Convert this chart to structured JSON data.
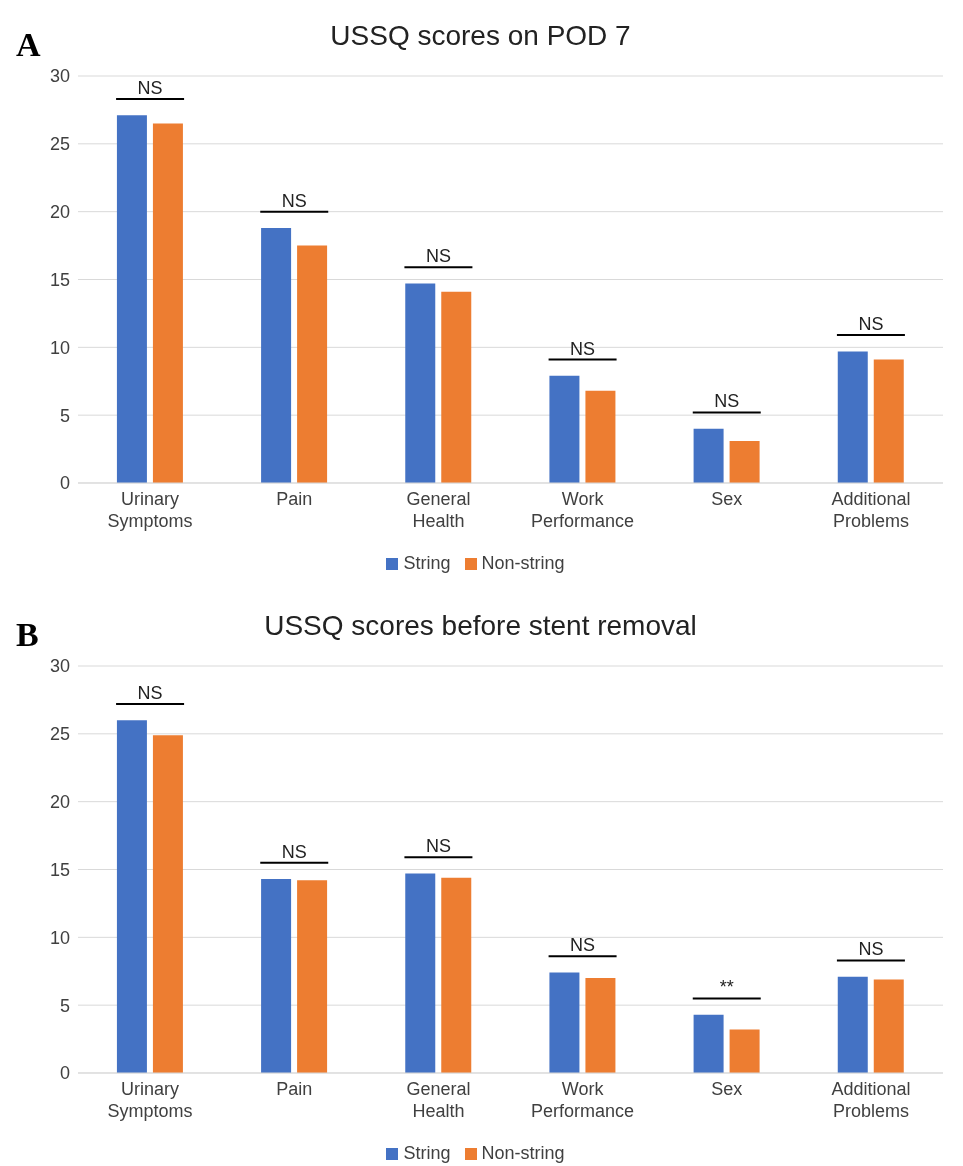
{
  "chart_data": [
    {
      "type": "bar",
      "title": "USSQ  scores on POD 7",
      "categories": [
        "Urinary Symptoms",
        "Pain",
        "General Health",
        "Work Performance",
        "Sex",
        "Additional Problems"
      ],
      "series": [
        {
          "name": "String",
          "color": "#4472c4",
          "values": [
            27.1,
            18.8,
            14.7,
            7.9,
            4.0,
            9.7
          ]
        },
        {
          "name": "Non-string",
          "color": "#ed7d31",
          "values": [
            26.5,
            17.5,
            14.1,
            6.8,
            3.1,
            9.1
          ]
        }
      ],
      "ylim": [
        0,
        30
      ],
      "yticks": [
        0,
        5,
        10,
        15,
        20,
        25,
        30
      ],
      "grid": "y",
      "legend": "bottom",
      "annotations": [
        "A",
        "NS",
        "NS",
        "NS",
        "NS",
        "NS",
        "NS"
      ]
    },
    {
      "type": "bar",
      "title": "USSQ scores before stent removal",
      "categories": [
        "Urinary Symptoms",
        "Pain",
        "General Health",
        "Work Performance",
        "Sex",
        "Additional Problems"
      ],
      "series": [
        {
          "name": "String",
          "color": "#4472c4",
          "values": [
            26.0,
            14.3,
            14.7,
            7.4,
            4.3,
            7.1
          ]
        },
        {
          "name": "Non-string",
          "color": "#ed7d31",
          "values": [
            24.9,
            14.2,
            14.4,
            7.0,
            3.2,
            6.9
          ]
        }
      ],
      "ylim": [
        0,
        30
      ],
      "yticks": [
        0,
        5,
        10,
        15,
        20,
        25,
        30
      ],
      "grid": "y",
      "legend": "bottom",
      "annotations": [
        "B",
        "NS",
        "NS",
        "NS",
        "NS",
        "**",
        "NS"
      ]
    }
  ]
}
